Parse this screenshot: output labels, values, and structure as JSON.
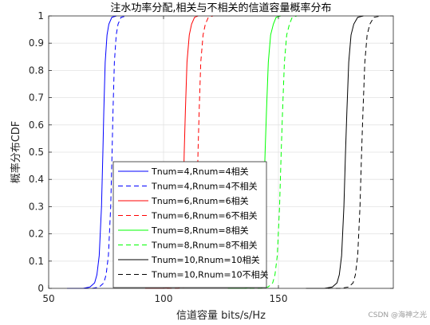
{
  "chart_data": {
    "type": "line",
    "title": "注水功率分配,相关与不相关的信道容量概率分布",
    "xlabel": "信道容量 bits/s/Hz",
    "ylabel": "概率分布CDF",
    "xlim": [
      50,
      200
    ],
    "ylim": [
      0,
      1
    ],
    "x_ticks": [
      50,
      100,
      150
    ],
    "y_ticks": [
      0,
      0.1,
      0.2,
      0.3,
      0.4,
      0.5,
      0.6,
      0.7,
      0.8,
      0.9,
      1
    ],
    "x_tick_labels": [
      "50",
      "100",
      "150"
    ],
    "y_tick_labels": [
      "0",
      "0.1",
      "0.2",
      "0.3",
      "0.4",
      "0.5",
      "0.6",
      "0.7",
      "0.8",
      "0.9",
      "1"
    ],
    "grid": true,
    "legend_position": "bottom-left",
    "series": [
      {
        "name": "Tnum=4,Rnum=4相关",
        "color": "#0000ff",
        "dash": "solid",
        "x": [
          58,
          65,
          68,
          70,
          71,
          72,
          73,
          73.6,
          74,
          74.6,
          75.4,
          76.2,
          77.5,
          79.5
        ],
        "y": [
          0,
          0,
          0.005,
          0.02,
          0.05,
          0.12,
          0.3,
          0.5,
          0.65,
          0.83,
          0.93,
          0.97,
          0.995,
          1
        ]
      },
      {
        "name": "Tnum=4,Rnum=4不相关",
        "color": "#0000ff",
        "dash": "dashed",
        "x": [
          62,
          69,
          72,
          74,
          75,
          76,
          77,
          77.6,
          78,
          78.6,
          79.4,
          80.2,
          81.5,
          84
        ],
        "y": [
          0,
          0,
          0.005,
          0.02,
          0.05,
          0.12,
          0.3,
          0.5,
          0.65,
          0.83,
          0.93,
          0.97,
          0.995,
          1
        ]
      },
      {
        "name": "Tnum=6,Rnum=6相关",
        "color": "#ff0000",
        "dash": "solid",
        "x": [
          92,
          100,
          103.5,
          105.5,
          106.5,
          107.5,
          108.5,
          109,
          109.5,
          110.2,
          111.2,
          112.2,
          113.5,
          115
        ],
        "y": [
          0,
          0,
          0.005,
          0.02,
          0.05,
          0.12,
          0.3,
          0.5,
          0.65,
          0.83,
          0.93,
          0.97,
          0.995,
          1
        ]
      },
      {
        "name": "Tnum=6,Rnum=6不相关",
        "color": "#ff0000",
        "dash": "dashed",
        "x": [
          98,
          106,
          109.5,
          111.5,
          112.5,
          113.5,
          114.5,
          115,
          115.5,
          116.2,
          117.2,
          118.2,
          119.5,
          121.5
        ],
        "y": [
          0,
          0,
          0.005,
          0.02,
          0.05,
          0.12,
          0.3,
          0.5,
          0.65,
          0.83,
          0.93,
          0.97,
          0.995,
          1
        ]
      },
      {
        "name": "Tnum=8,Rnum=8相关",
        "color": "#00ff00",
        "dash": "solid",
        "x": [
          128,
          135,
          138.5,
          140.5,
          141.5,
          142.5,
          143.5,
          144.2,
          144.8,
          145.6,
          146.6,
          147.8,
          149,
          151
        ],
        "y": [
          0,
          0,
          0.005,
          0.02,
          0.05,
          0.12,
          0.3,
          0.5,
          0.65,
          0.83,
          0.93,
          0.97,
          0.995,
          1
        ]
      },
      {
        "name": "Tnum=8,Rnum=8不相关",
        "color": "#00ff00",
        "dash": "dashed",
        "x": [
          134,
          142,
          145.5,
          147.5,
          148.5,
          149.5,
          150.5,
          151.2,
          151.8,
          152.6,
          153.6,
          154.8,
          156,
          158
        ],
        "y": [
          0,
          0,
          0.005,
          0.02,
          0.05,
          0.12,
          0.3,
          0.5,
          0.65,
          0.83,
          0.93,
          0.97,
          0.995,
          1
        ]
      },
      {
        "name": "Tnum=10,Rnum=10相关",
        "color": "#000000",
        "dash": "solid",
        "x": [
          162,
          170,
          173.5,
          175.5,
          176.5,
          177.5,
          178.5,
          179.2,
          179.8,
          180.6,
          181.6,
          182.8,
          184.5,
          187
        ],
        "y": [
          0,
          0,
          0.005,
          0.02,
          0.05,
          0.12,
          0.3,
          0.5,
          0.65,
          0.83,
          0.93,
          0.97,
          0.995,
          1
        ]
      },
      {
        "name": "Tnum=10,Rnum=10不相关",
        "color": "#000000",
        "dash": "dashed",
        "x": [
          168,
          177,
          180.5,
          182.5,
          183.5,
          184.5,
          185.5,
          186.2,
          186.8,
          187.6,
          188.6,
          189.8,
          191.5,
          195
        ],
        "y": [
          0,
          0,
          0.005,
          0.02,
          0.05,
          0.12,
          0.3,
          0.5,
          0.65,
          0.83,
          0.93,
          0.97,
          0.995,
          1
        ]
      }
    ]
  },
  "watermark": "CSDN @海神之光"
}
